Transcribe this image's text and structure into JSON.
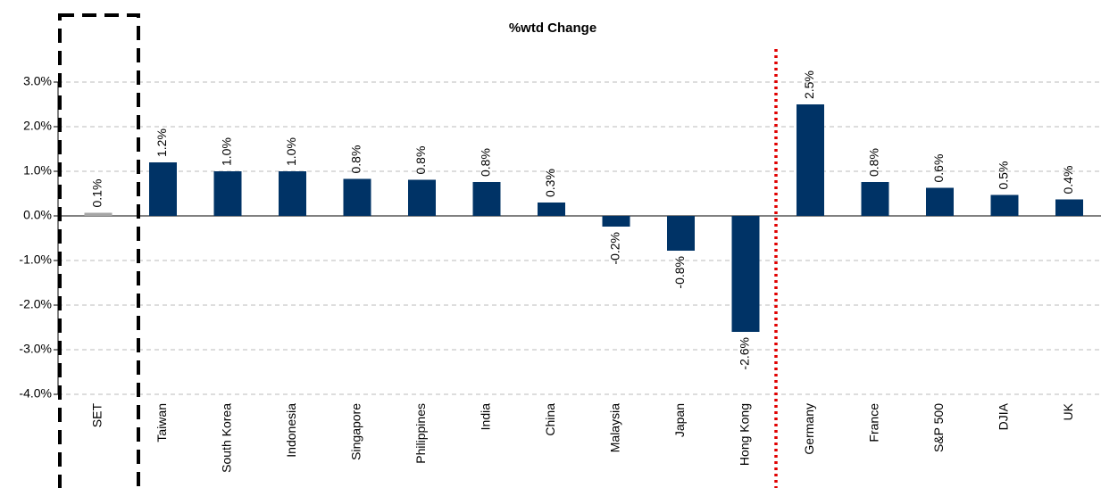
{
  "chart_data": {
    "type": "bar",
    "title": "%wtd Change",
    "categories": [
      "SET",
      "Taiwan",
      "South Korea",
      "Indonesia",
      "Singapore",
      "Philippines",
      "India",
      "China",
      "Malaysia",
      "Japan",
      "Hong Kong",
      "Germany",
      "France",
      "S&P 500",
      "DJIA",
      "UK"
    ],
    "values": [
      0.07,
      1.2,
      1.0,
      1.0,
      0.83,
      0.81,
      0.76,
      0.3,
      -0.24,
      -0.78,
      -2.6,
      2.5,
      0.76,
      0.63,
      0.47,
      0.37
    ],
    "value_labels": [
      "0.1%",
      "1.2%",
      "1.0%",
      "1.0%",
      "0.8%",
      "0.8%",
      "0.8%",
      "0.3%",
      "-0.2%",
      "-0.8%",
      "-2.6%",
      "2.5%",
      "0.8%",
      "0.6%",
      "0.5%",
      "0.4%"
    ],
    "colors": [
      "#a6a6a6",
      "#003366",
      "#003366",
      "#003366",
      "#003366",
      "#003366",
      "#003366",
      "#003366",
      "#003366",
      "#003366",
      "#003366",
      "#003366",
      "#003366",
      "#003366",
      "#003366",
      "#003366"
    ],
    "ylim": [
      -4,
      3
    ],
    "yticks": [
      {
        "value": -4,
        "label": "-4.0%"
      },
      {
        "value": -3,
        "label": "-3.0%"
      },
      {
        "value": -2,
        "label": "-2.0%"
      },
      {
        "value": -1,
        "label": "-1.0%"
      },
      {
        "value": 0,
        "label": "0.0%"
      },
      {
        "value": 1,
        "label": "1.0%"
      },
      {
        "value": 2,
        "label": "2.0%"
      },
      {
        "value": 3,
        "label": "3.0%"
      }
    ],
    "grid": true
  }
}
